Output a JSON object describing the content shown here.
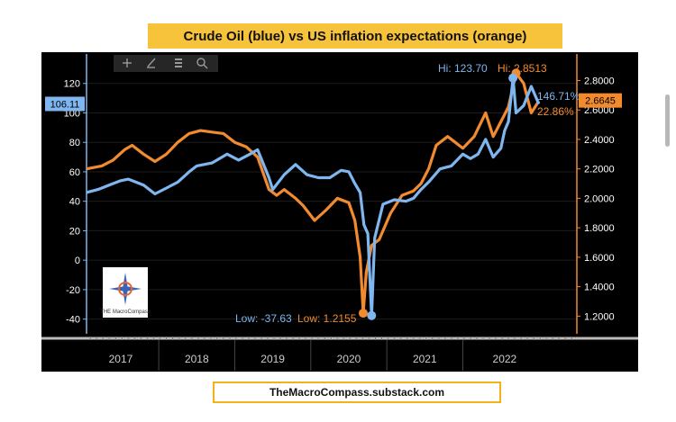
{
  "title": "Crude Oil (blue) vs US inflation expectations (orange)",
  "footer": "TheMacroCompass.substack.com",
  "logo": {
    "text": "THE MacroCompass"
  },
  "toolbar": {
    "icons": [
      "crosshair-icon",
      "pen-icon",
      "table-icon",
      "zoom-icon"
    ]
  },
  "chart_data": {
    "type": "line",
    "x_range": [
      2016.55,
      2023.0
    ],
    "years": [
      "2017",
      "2018",
      "2019",
      "2020",
      "2021",
      "2022"
    ],
    "year_label_positions": [
      2017.0,
      2018.0,
      2019.0,
      2020.0,
      2021.0,
      2022.05
    ],
    "year_boundaries": [
      2017.5,
      2018.5,
      2019.5,
      2020.5,
      2021.5
    ],
    "left_axis": {
      "ticks": [
        120,
        100,
        80,
        60,
        40,
        20,
        0,
        -20,
        -40
      ],
      "range": [
        -50,
        140
      ]
    },
    "right_axis": {
      "ticks": [
        "2.8000",
        "2.6000",
        "2.4000",
        "2.2000",
        "2.0000",
        "1.8000",
        "1.6000",
        "1.4000",
        "1.2000"
      ],
      "range": [
        1.08,
        2.98
      ]
    },
    "current_left_label": "106.11",
    "current_right_label": "2.6645",
    "series": [
      {
        "name": "Crude Oil",
        "color": "#7fb6ef",
        "axis": "left",
        "points": [
          [
            2016.55,
            46
          ],
          [
            2016.7,
            48
          ],
          [
            2016.9,
            52
          ],
          [
            2017.0,
            54
          ],
          [
            2017.1,
            55
          ],
          [
            2017.2,
            53
          ],
          [
            2017.3,
            51
          ],
          [
            2017.45,
            45
          ],
          [
            2017.6,
            49
          ],
          [
            2017.75,
            53
          ],
          [
            2017.9,
            60
          ],
          [
            2018.0,
            64
          ],
          [
            2018.2,
            66
          ],
          [
            2018.4,
            72
          ],
          [
            2018.55,
            68
          ],
          [
            2018.7,
            72
          ],
          [
            2018.8,
            75
          ],
          [
            2018.95,
            56
          ],
          [
            2019.0,
            48
          ],
          [
            2019.15,
            58
          ],
          [
            2019.3,
            65
          ],
          [
            2019.45,
            58
          ],
          [
            2019.6,
            56
          ],
          [
            2019.75,
            56
          ],
          [
            2019.9,
            61
          ],
          [
            2020.0,
            60
          ],
          [
            2020.08,
            52
          ],
          [
            2020.15,
            46
          ],
          [
            2020.2,
            24
          ],
          [
            2020.25,
            18
          ],
          [
            2020.3,
            -37.6
          ],
          [
            2020.34,
            15
          ],
          [
            2020.45,
            38
          ],
          [
            2020.6,
            41
          ],
          [
            2020.75,
            40
          ],
          [
            2020.85,
            42
          ],
          [
            2020.95,
            48
          ],
          [
            2021.05,
            53
          ],
          [
            2021.2,
            62
          ],
          [
            2021.35,
            64
          ],
          [
            2021.5,
            72
          ],
          [
            2021.6,
            69
          ],
          [
            2021.7,
            72
          ],
          [
            2021.8,
            82
          ],
          [
            2021.9,
            70
          ],
          [
            2022.0,
            76
          ],
          [
            2022.05,
            88
          ],
          [
            2022.1,
            94
          ],
          [
            2022.16,
            123.7
          ],
          [
            2022.2,
            100
          ],
          [
            2022.3,
            105
          ],
          [
            2022.4,
            118
          ],
          [
            2022.5,
            106.1
          ]
        ]
      },
      {
        "name": "US inflation expectations",
        "color": "#f28b30",
        "axis": "right",
        "points": [
          [
            2016.55,
            2.2
          ],
          [
            2016.75,
            2.22
          ],
          [
            2016.9,
            2.26
          ],
          [
            2017.05,
            2.33
          ],
          [
            2017.15,
            2.36
          ],
          [
            2017.3,
            2.3
          ],
          [
            2017.45,
            2.25
          ],
          [
            2017.6,
            2.3
          ],
          [
            2017.75,
            2.38
          ],
          [
            2017.9,
            2.44
          ],
          [
            2018.05,
            2.46
          ],
          [
            2018.2,
            2.45
          ],
          [
            2018.35,
            2.44
          ],
          [
            2018.5,
            2.38
          ],
          [
            2018.65,
            2.35
          ],
          [
            2018.8,
            2.28
          ],
          [
            2018.95,
            2.06
          ],
          [
            2019.05,
            2.02
          ],
          [
            2019.15,
            2.06
          ],
          [
            2019.3,
            2.0
          ],
          [
            2019.4,
            1.95
          ],
          [
            2019.55,
            1.85
          ],
          [
            2019.7,
            1.92
          ],
          [
            2019.85,
            2.0
          ],
          [
            2020.0,
            1.97
          ],
          [
            2020.08,
            1.85
          ],
          [
            2020.15,
            1.6
          ],
          [
            2020.19,
            1.22
          ],
          [
            2020.23,
            1.5
          ],
          [
            2020.3,
            1.68
          ],
          [
            2020.4,
            1.72
          ],
          [
            2020.55,
            1.9
          ],
          [
            2020.7,
            2.02
          ],
          [
            2020.85,
            2.05
          ],
          [
            2020.95,
            2.1
          ],
          [
            2021.05,
            2.2
          ],
          [
            2021.15,
            2.36
          ],
          [
            2021.3,
            2.42
          ],
          [
            2021.4,
            2.38
          ],
          [
            2021.5,
            2.34
          ],
          [
            2021.65,
            2.42
          ],
          [
            2021.8,
            2.58
          ],
          [
            2021.9,
            2.42
          ],
          [
            2022.0,
            2.52
          ],
          [
            2022.1,
            2.62
          ],
          [
            2022.2,
            2.85
          ],
          [
            2022.3,
            2.78
          ],
          [
            2022.4,
            2.58
          ],
          [
            2022.5,
            2.66
          ]
        ]
      }
    ],
    "annotations": {
      "hi_blue": "Hi: 123.70",
      "hi_orange": "Hi: 2.8513",
      "low_blue": "Low: -37.63",
      "low_orange": "Low: 1.2155",
      "pct_blue": "146.71%",
      "pct_orange": "22.86%"
    }
  }
}
